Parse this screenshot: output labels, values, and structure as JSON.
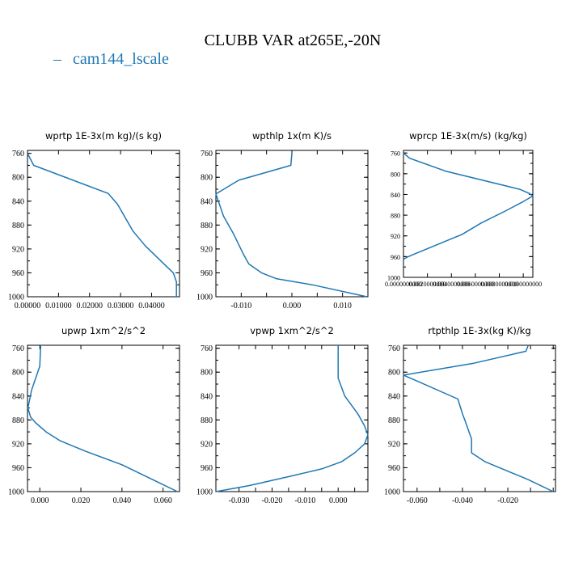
{
  "title": "CLUBB VAR at265E,-20N",
  "legend": {
    "marker": "–",
    "label": "cam144_lscale",
    "color": "#1f77b4"
  },
  "chart_data": [
    {
      "type": "line",
      "title": "wprtp 1E-3x(m kg)/(s kg)",
      "series": [
        {
          "name": "cam144_lscale",
          "x": [
            0.0,
            0.002,
            0.026,
            0.029,
            0.034,
            0.038,
            0.044,
            0.047,
            0.048,
            0.048,
            0.048
          ],
          "y": [
            760,
            780,
            827,
            845,
            890,
            915,
            945,
            960,
            975,
            990,
            1000
          ]
        }
      ],
      "xlim": [
        0.0,
        0.049
      ],
      "ylim": [
        1000,
        755
      ],
      "xticks": [
        0.0,
        0.01,
        0.02,
        0.03,
        0.04
      ],
      "xtick_labels": [
        "0.00000",
        "0.01000",
        "0.02000",
        "0.03000",
        "0.04000"
      ],
      "yticks": [
        760,
        800,
        840,
        880,
        920,
        960,
        1000
      ],
      "ytick_labels": [
        "760",
        "800",
        "840",
        "880",
        "920",
        "960",
        "1000"
      ]
    },
    {
      "type": "line",
      "title": "wpthlp 1x(m K)/s",
      "series": [
        {
          "name": "cam144_lscale",
          "x": [
            0.0,
            -0.0002,
            -0.0105,
            -0.015,
            -0.0135,
            -0.0115,
            -0.0095,
            -0.0085,
            -0.006,
            -0.003,
            0.004,
            0.0148
          ],
          "y": [
            760,
            780,
            805,
            828,
            865,
            895,
            930,
            945,
            960,
            970,
            980,
            1000
          ]
        }
      ],
      "xlim": [
        -0.015,
        0.015
      ],
      "ylim": [
        1000,
        755
      ],
      "xticks": [
        -0.01,
        -0.005,
        0.0,
        0.005,
        0.01
      ],
      "xtick_labels": [
        "-0.010",
        "",
        "0.000",
        "",
        "0.010"
      ],
      "yticks": [
        760,
        800,
        840,
        880,
        920,
        960,
        1000
      ],
      "ytick_labels": [
        "760",
        "800",
        "840",
        "880",
        "920",
        "960",
        "1000"
      ]
    },
    {
      "type": "line",
      "title": "wprcp 1E-3x(m/s) (kg/kg)",
      "series": [
        {
          "name": "cam144_lscale",
          "x": [
            0.0,
            0.0005,
            0.0035,
            0.0097,
            0.0105,
            0.0108,
            0.0099,
            0.0085,
            0.0065,
            0.0049,
            0.0004,
            0.0
          ],
          "y": [
            760,
            770,
            795,
            830,
            838,
            843,
            855,
            872,
            895,
            917,
            960,
            965
          ]
        }
      ],
      "xlim": [
        0.0,
        0.0108
      ],
      "ylim": [
        1000,
        755
      ],
      "xticks": [
        0.0,
        0.002,
        0.004,
        0.006,
        0.008,
        0.01
      ],
      "xtick_labels": [
        "0.0000000000",
        "0.0020000000",
        "0.0040000000",
        "0.0060000000",
        "0.0080000000",
        "0.0100000000"
      ],
      "yticks": [
        760,
        800,
        840,
        880,
        920,
        960,
        1000
      ],
      "ytick_labels": [
        "760",
        "800",
        "840",
        "880",
        "920",
        "960",
        "1000"
      ]
    },
    {
      "type": "line",
      "title": "upwp 1xm^2/s^2",
      "series": [
        {
          "name": "cam144_lscale",
          "x": [
            0.0004,
            0.0,
            -0.004,
            -0.0058,
            -0.0045,
            -0.002,
            0.003,
            0.01,
            0.022,
            0.04,
            0.058,
            0.067
          ],
          "y": [
            755,
            790,
            830,
            860,
            875,
            885,
            900,
            915,
            932,
            955,
            985,
            1000
          ]
        }
      ],
      "xlim": [
        -0.006,
        0.068
      ],
      "ylim": [
        1000,
        755
      ],
      "xticks": [
        0.0,
        0.02,
        0.04,
        0.06
      ],
      "xtick_labels": [
        "0.000",
        "0.020",
        "0.040",
        "0.060"
      ],
      "yticks": [
        760,
        800,
        840,
        880,
        920,
        960,
        1000
      ],
      "ytick_labels": [
        "760",
        "800",
        "840",
        "880",
        "920",
        "960",
        "1000"
      ]
    },
    {
      "type": "line",
      "title": "vpwp 1xm^2/s^2",
      "series": [
        {
          "name": "cam144_lscale",
          "x": [
            0.0,
            0.0,
            0.002,
            0.006,
            0.008,
            0.009,
            0.008,
            0.005,
            0.001,
            -0.005,
            -0.015,
            -0.027,
            -0.037
          ],
          "y": [
            755,
            810,
            840,
            870,
            890,
            905,
            920,
            935,
            950,
            962,
            975,
            990,
            1000
          ]
        }
      ],
      "xlim": [
        -0.037,
        0.009
      ],
      "ylim": [
        1000,
        755
      ],
      "xticks": [
        -0.03,
        -0.025,
        -0.02,
        -0.015,
        -0.01,
        -0.005,
        0.0,
        0.005
      ],
      "xtick_labels": [
        "-0.030",
        "",
        "-0.020",
        "",
        "-0.010",
        "",
        "0.000",
        ""
      ],
      "yticks": [
        760,
        800,
        840,
        880,
        920,
        960,
        1000
      ],
      "ytick_labels": [
        "760",
        "800",
        "840",
        "880",
        "920",
        "960",
        "1000"
      ]
    },
    {
      "type": "line",
      "title": "rtpthlp 1E-3x(kg K)/kg",
      "series": [
        {
          "name": "cam144_lscale",
          "x": [
            -0.011,
            -0.012,
            -0.035,
            -0.066,
            -0.042,
            -0.04,
            -0.039,
            -0.036,
            -0.036,
            -0.03,
            -0.011,
            0.0
          ],
          "y": [
            755,
            765,
            785,
            805,
            845,
            870,
            880,
            912,
            935,
            950,
            980,
            1000
          ]
        }
      ],
      "xlim": [
        -0.066,
        0.001
      ],
      "ylim": [
        1000,
        755
      ],
      "xticks": [
        -0.06,
        -0.05,
        -0.04,
        -0.03,
        -0.02,
        -0.01,
        0.0
      ],
      "xtick_labels": [
        "-0.060",
        "",
        "-0.040",
        "",
        "-0.020",
        "",
        ""
      ],
      "yticks": [
        760,
        800,
        840,
        880,
        920,
        960,
        1000
      ],
      "ytick_labels": [
        "760",
        "800",
        "840",
        "880",
        "920",
        "960",
        "1000"
      ]
    }
  ]
}
